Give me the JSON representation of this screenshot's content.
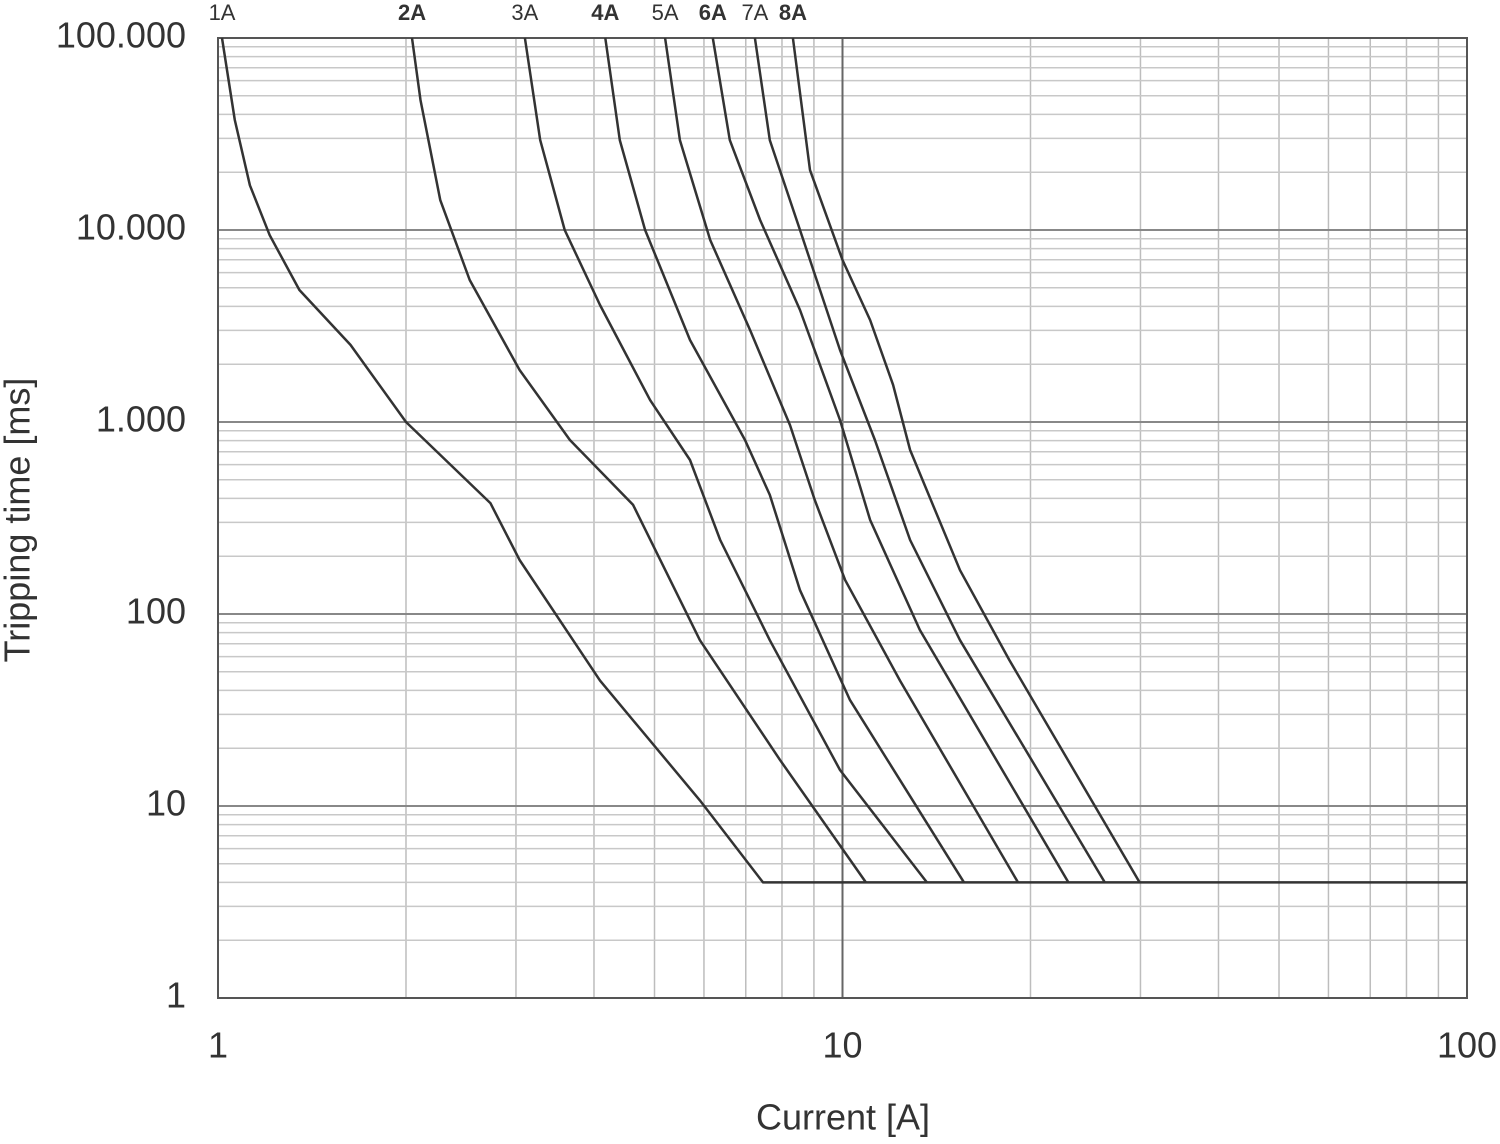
{
  "chart_data": {
    "type": "line",
    "x_label": "Current [A]",
    "y_label": "Tripping time [ms]",
    "xscale": "log",
    "yscale": "log",
    "xlim": [
      1,
      100
    ],
    "ylim": [
      1,
      100000
    ],
    "xticks": [
      1,
      10,
      100
    ],
    "yticks": [
      1,
      10,
      100,
      {
        "value": 1000,
        "label": "1.000"
      },
      {
        "value": 10000,
        "label": "10.000"
      },
      {
        "value": 100000,
        "label": "100.000"
      }
    ],
    "grid": true,
    "minor_grid": true,
    "series": [
      {
        "name": "1A",
        "color": "#333333",
        "label_bold": false,
        "x": [
          1.015,
          1.064,
          1.125,
          1.21,
          1.35,
          1.63,
          2.0,
          2.73,
          3.04,
          4.09,
          5.91,
          7.46,
          100
        ],
        "values": [
          100000,
          37400,
          17100,
          9400,
          4870,
          2520,
          1000,
          378,
          191,
          45,
          10.7,
          4,
          4
        ]
      },
      {
        "name": "2A",
        "color": "#333333",
        "label_bold": true,
        "x": [
          2.045,
          2.11,
          2.27,
          2.53,
          3.04,
          3.66,
          4.62,
          5.91,
          7.94,
          10.9
        ],
        "values": [
          100000,
          47500,
          14300,
          5490,
          1866,
          806,
          370,
          73,
          17.4,
          4
        ]
      },
      {
        "name": "3A",
        "color": "#333333",
        "label_bold": false,
        "x": [
          3.1,
          3.28,
          3.59,
          4.09,
          4.92,
          5.7,
          6.37,
          7.65,
          9.91,
          13.65
        ],
        "values": [
          100000,
          29400,
          10000,
          4070,
          1300,
          634,
          243,
          73,
          15.4,
          4
        ]
      },
      {
        "name": "4A",
        "color": "#333333",
        "label_bold": true,
        "x": [
          4.17,
          4.4,
          4.83,
          5.7,
          6.98,
          7.65,
          8.55,
          10.28,
          15.65
        ],
        "values": [
          100000,
          29400,
          10000,
          2673,
          806,
          417,
          133,
          35.6,
          4
        ]
      },
      {
        "name": "5A",
        "color": "#333333",
        "label_bold": false,
        "x": [
          5.2,
          5.49,
          6.14,
          7.11,
          8.24,
          9.03,
          10.1,
          12.36,
          19.1
        ],
        "values": [
          100000,
          29400,
          8870,
          3016,
          964,
          392,
          150,
          45,
          4
        ]
      },
      {
        "name": "6A",
        "color": "#333333",
        "label_bold": true,
        "x": [
          6.2,
          6.6,
          7.38,
          8.55,
          9.91,
          11.07,
          13.3,
          23.0
        ],
        "values": [
          100000,
          29400,
          11270,
          3830,
          1024,
          309,
          82.6,
          4
        ]
      },
      {
        "name": "7A",
        "color": "#333333",
        "label_bold": false,
        "x": [
          7.24,
          7.65,
          8.55,
          9.91,
          11.27,
          12.83,
          15.42,
          26.3
        ],
        "values": [
          100000,
          29400,
          10000,
          2371,
          806,
          243,
          73,
          4
        ]
      },
      {
        "name": "8A",
        "color": "#333333",
        "label_bold": true,
        "x": [
          8.33,
          8.87,
          10.0,
          11.07,
          12.05,
          12.83,
          15.42,
          18.5,
          29.9
        ],
        "values": [
          100000,
          20500,
          6980,
          3400,
          1560,
          715,
          169,
          57.6,
          4
        ]
      }
    ]
  }
}
